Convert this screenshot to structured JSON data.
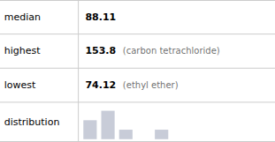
{
  "chart_data": {
    "type": "bar",
    "annotations": [
      {
        "label": "median",
        "value": "88.11"
      },
      {
        "label": "highest",
        "value": "153.8",
        "note": "(carbon tetrachloride)"
      },
      {
        "label": "lowest",
        "value": "74.12",
        "note": "(ethyl ether)"
      },
      {
        "label": "distribution"
      }
    ],
    "categories": [
      null,
      null,
      null,
      null,
      null
    ],
    "values": [
      2,
      3,
      1,
      0,
      1
    ],
    "color": "#c8ccd8",
    "ylim": [
      0,
      3.3
    ],
    "grid": false,
    "tick_labels": false
  }
}
